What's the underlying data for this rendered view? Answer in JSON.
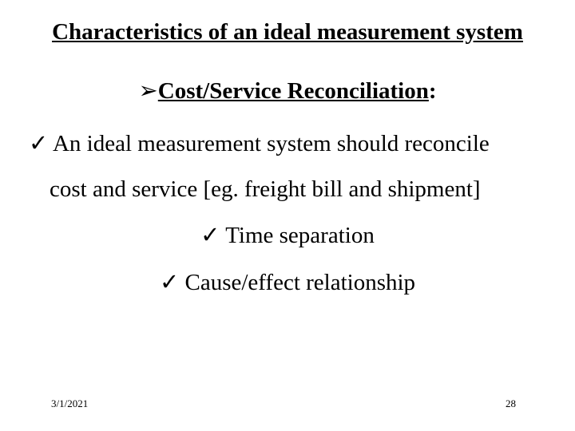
{
  "colors": {
    "background": "#ffffff",
    "text": "#000000"
  },
  "typography": {
    "family": "Times New Roman",
    "title_fontsize_pt": 22,
    "body_fontsize_pt": 22,
    "footer_fontsize_pt": 10,
    "title_bold": true,
    "subhead_bold": true
  },
  "title": "Characteristics of an ideal measurement system",
  "subhead": {
    "bullet_glyph": "➢",
    "text": "Cost/Service Reconciliation",
    "trailing": ":"
  },
  "bullets": {
    "check_glyph": "✓",
    "items": [
      {
        "line1": "An ideal measurement system should reconcile",
        "line2": "cost and service [eg. freight bill and shipment]"
      },
      {
        "line1": "Time separation"
      },
      {
        "line1": "Cause/effect relationship"
      }
    ]
  },
  "footer": {
    "date": "3/1/2021",
    "page": "28"
  }
}
